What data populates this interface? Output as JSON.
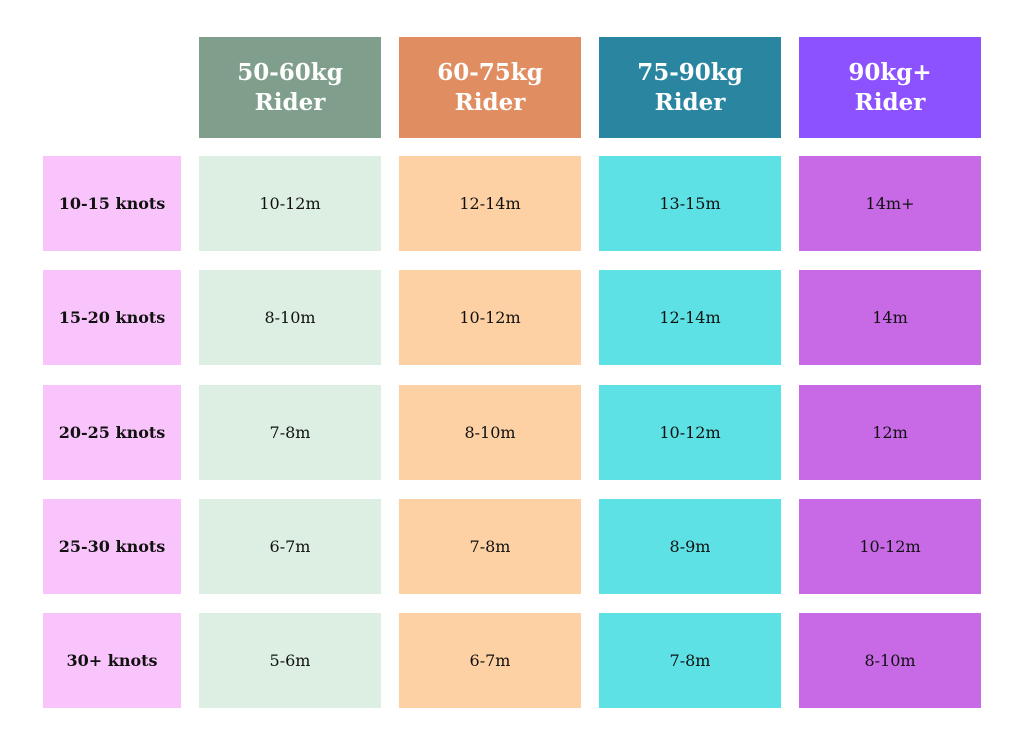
{
  "columns": [
    {
      "line1": "50-60kg",
      "line2": "Rider",
      "header_color": "#7f9e8c",
      "cell_color": "#dcefe2"
    },
    {
      "line1": "60-75kg",
      "line2": "Rider",
      "header_color": "#e08d62",
      "cell_color": "#fdd1a3"
    },
    {
      "line1": "75-90kg",
      "line2": "Rider",
      "header_color": "#2a85a1",
      "cell_color": "#5de1e5"
    },
    {
      "line1": "90kg+",
      "line2": "Rider",
      "header_color": "#8c52ff",
      "cell_color": "#c86ae6"
    }
  ],
  "row_label_color": "#f9c4fb",
  "rows": [
    {
      "label": "10-15 knots",
      "values": [
        "10-12m",
        "12-14m",
        "13-15m",
        "14m+"
      ]
    },
    {
      "label": "15-20 knots",
      "values": [
        "8-10m",
        "10-12m",
        "12-14m",
        "14m"
      ]
    },
    {
      "label": "20-25 knots",
      "values": [
        "7-8m",
        "8-10m",
        "10-12m",
        "12m"
      ]
    },
    {
      "label": "25-30 knots",
      "values": [
        "6-7m",
        "7-8m",
        "8-9m",
        "10-12m"
      ]
    },
    {
      "label": "30+ knots",
      "values": [
        "5-6m",
        "6-7m",
        "7-8m",
        "8-10m"
      ]
    }
  ]
}
